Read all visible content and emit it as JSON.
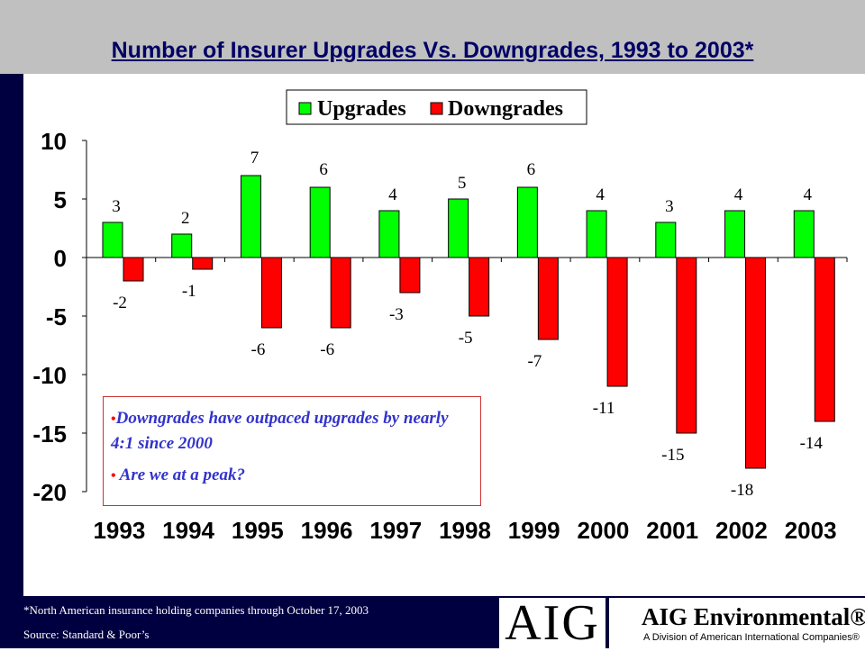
{
  "page": {
    "title": "Number of Insurer Upgrades Vs. Downgrades, 1993 to 2003*",
    "footnote": "*North American insurance holding companies  through October 17, 2003",
    "source": "Source: Standard & Poor’s"
  },
  "callout": {
    "line1": "Downgrades have outpaced upgrades by nearly 4:1 since 2000",
    "line2": "Are we at a peak?"
  },
  "brand": {
    "logo": "AIG",
    "name": "AIG Environmental®",
    "subtitle": "A Division of American International Companies®"
  },
  "colors": {
    "upgrades": "#00ff00",
    "downgrades": "#ff0000",
    "band": "#000040",
    "title": "#000066"
  },
  "chart_data": {
    "type": "bar",
    "categories": [
      "1993",
      "1994",
      "1995",
      "1996",
      "1997",
      "1998",
      "1999",
      "2000",
      "2001",
      "2002",
      "2003"
    ],
    "series": [
      {
        "name": "Upgrades",
        "values": [
          3,
          2,
          7,
          6,
          4,
          5,
          6,
          4,
          3,
          4,
          4
        ]
      },
      {
        "name": "Downgrades",
        "values": [
          -2,
          -1,
          -6,
          -6,
          -3,
          -5,
          -7,
          -11,
          -15,
          -18,
          -14
        ]
      }
    ],
    "ylim": [
      -20,
      10
    ],
    "yticks": [
      10,
      5,
      0,
      -5,
      -10,
      -15,
      -20
    ],
    "legend_position": "top",
    "grid": false
  }
}
